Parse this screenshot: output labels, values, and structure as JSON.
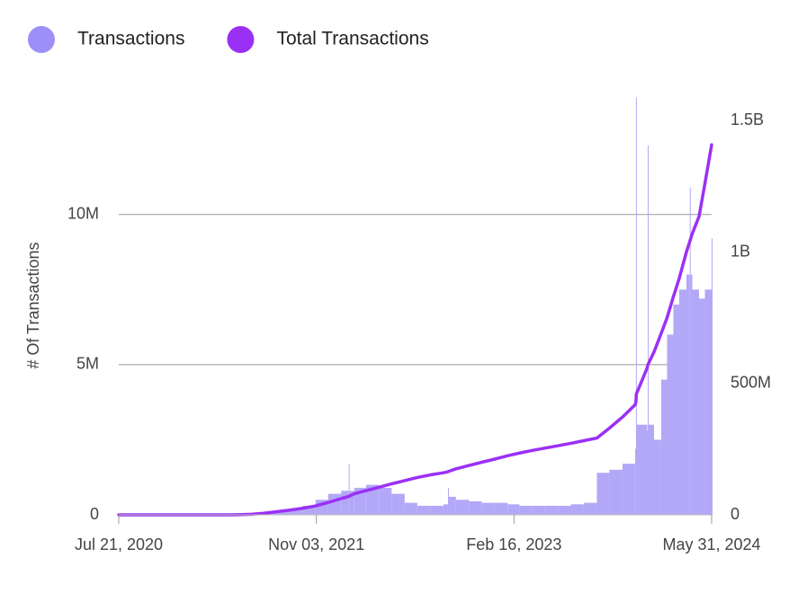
{
  "chart_data": {
    "type": "bar-line",
    "y_label": "# Of Transactions",
    "x": [
      "Jul 21, 2020",
      "Aug 01, 2020",
      "Sep 01, 2020",
      "Oct 01, 2020",
      "Nov 01, 2020",
      "Dec 01, 2020",
      "Jan 01, 2021",
      "Feb 01, 2021",
      "Mar 01, 2021",
      "Apr 01, 2021",
      "May 01, 2021",
      "Jun 01, 2021",
      "Jul 01, 2021",
      "Aug 01, 2021",
      "Sep 01, 2021",
      "Oct 01, 2021",
      "Nov 01, 2021",
      "Dec 01, 2021",
      "Jan 01, 2022",
      "Jan 19, 2022",
      "Jan 20, 2022",
      "Feb 01, 2022",
      "Mar 01, 2022",
      "Apr 01, 2022",
      "May 01, 2022",
      "Jun 01, 2022",
      "Jul 01, 2022",
      "Aug 01, 2022",
      "Sep 01, 2022",
      "Sep 12, 2022",
      "Sep 13, 2022",
      "Oct 01, 2022",
      "Nov 01, 2022",
      "Dec 01, 2022",
      "Jan 01, 2023",
      "Feb 01, 2023",
      "Mar 01, 2023",
      "Apr 01, 2023",
      "May 01, 2023",
      "Jun 01, 2023",
      "Jul 01, 2023",
      "Aug 01, 2023",
      "Sep 01, 2023",
      "Oct 01, 2023",
      "Nov 01, 2023",
      "Dec 01, 2023",
      "Dec 03, 2023",
      "Dec 04, 2023",
      "Dec 30, 2023",
      "Dec 31, 2023",
      "Jan 01, 2024",
      "Jan 15, 2024",
      "Feb 01, 2024",
      "Feb 15, 2024",
      "Mar 01, 2024",
      "Mar 15, 2024",
      "Apr 01, 2024",
      "Apr 09, 2024",
      "Apr 10, 2024",
      "Apr 15, 2024",
      "May 01, 2024",
      "May 15, 2024",
      "May 31, 2024"
    ],
    "series": [
      {
        "name": "Transactions",
        "type": "bar",
        "color": "#b3a8f7",
        "legend_color": "#9d8ff8",
        "values": [
          0,
          0,
          0,
          0,
          0,
          0,
          0,
          0,
          0,
          0,
          20000,
          50000,
          100000,
          150000,
          200000,
          300000,
          500000,
          700000,
          800000,
          1700000,
          800000,
          900000,
          1000000,
          900000,
          700000,
          400000,
          300000,
          300000,
          350000,
          900000,
          600000,
          500000,
          450000,
          400000,
          400000,
          350000,
          300000,
          300000,
          300000,
          300000,
          350000,
          400000,
          1400000,
          1500000,
          1700000,
          2200000,
          13900000,
          3000000,
          2800000,
          12300000,
          3000000,
          2500000,
          4500000,
          6000000,
          7000000,
          7500000,
          8000000,
          10900000,
          8000000,
          7500000,
          7200000,
          7500000,
          9200000
        ]
      },
      {
        "name": "Total Transactions",
        "type": "line",
        "axis": "y2",
        "color": "#9b30f5",
        "values": [
          0,
          0,
          0,
          0,
          0,
          0,
          0,
          0,
          0,
          0,
          500000,
          2000000,
          6000000,
          12000000,
          18000000,
          25000000,
          34000000,
          47000000,
          62000000,
          70000000,
          71000000,
          80000000,
          92000000,
          105000000,
          118000000,
          130000000,
          142000000,
          152000000,
          160000000,
          164000000,
          165000000,
          175000000,
          188000000,
          200000000,
          212000000,
          225000000,
          235000000,
          245000000,
          254000000,
          263000000,
          272000000,
          282000000,
          292000000,
          330000000,
          372000000,
          419000000,
          430000000,
          460000000,
          560000000,
          570000000,
          573000000,
          620000000,
          690000000,
          750000000,
          830000000,
          900000000,
          1000000000,
          1040000000,
          1045000000,
          1070000000,
          1135000000,
          1260000000,
          1408000000
        ]
      }
    ],
    "xlim": [
      "Jul 21, 2020",
      "May 31, 2024"
    ],
    "xticks": [
      "Jul 21, 2020",
      "Nov 03, 2021",
      "Feb 16, 2023",
      "May 31, 2024"
    ],
    "ylim": [
      0,
      14000000
    ],
    "yticks": [
      0,
      {
        "value": 5000000,
        "label": "5M"
      },
      {
        "value": 10000000,
        "label": "10M"
      }
    ],
    "y2lim": [
      0,
      1600000000
    ],
    "y2ticks": [
      0,
      {
        "value": 500000000,
        "label": "500M"
      },
      {
        "value": 1000000000,
        "label": "1B"
      },
      {
        "value": 1500000000,
        "label": "1.5B"
      }
    ],
    "grid": true,
    "legend": "top-left"
  }
}
